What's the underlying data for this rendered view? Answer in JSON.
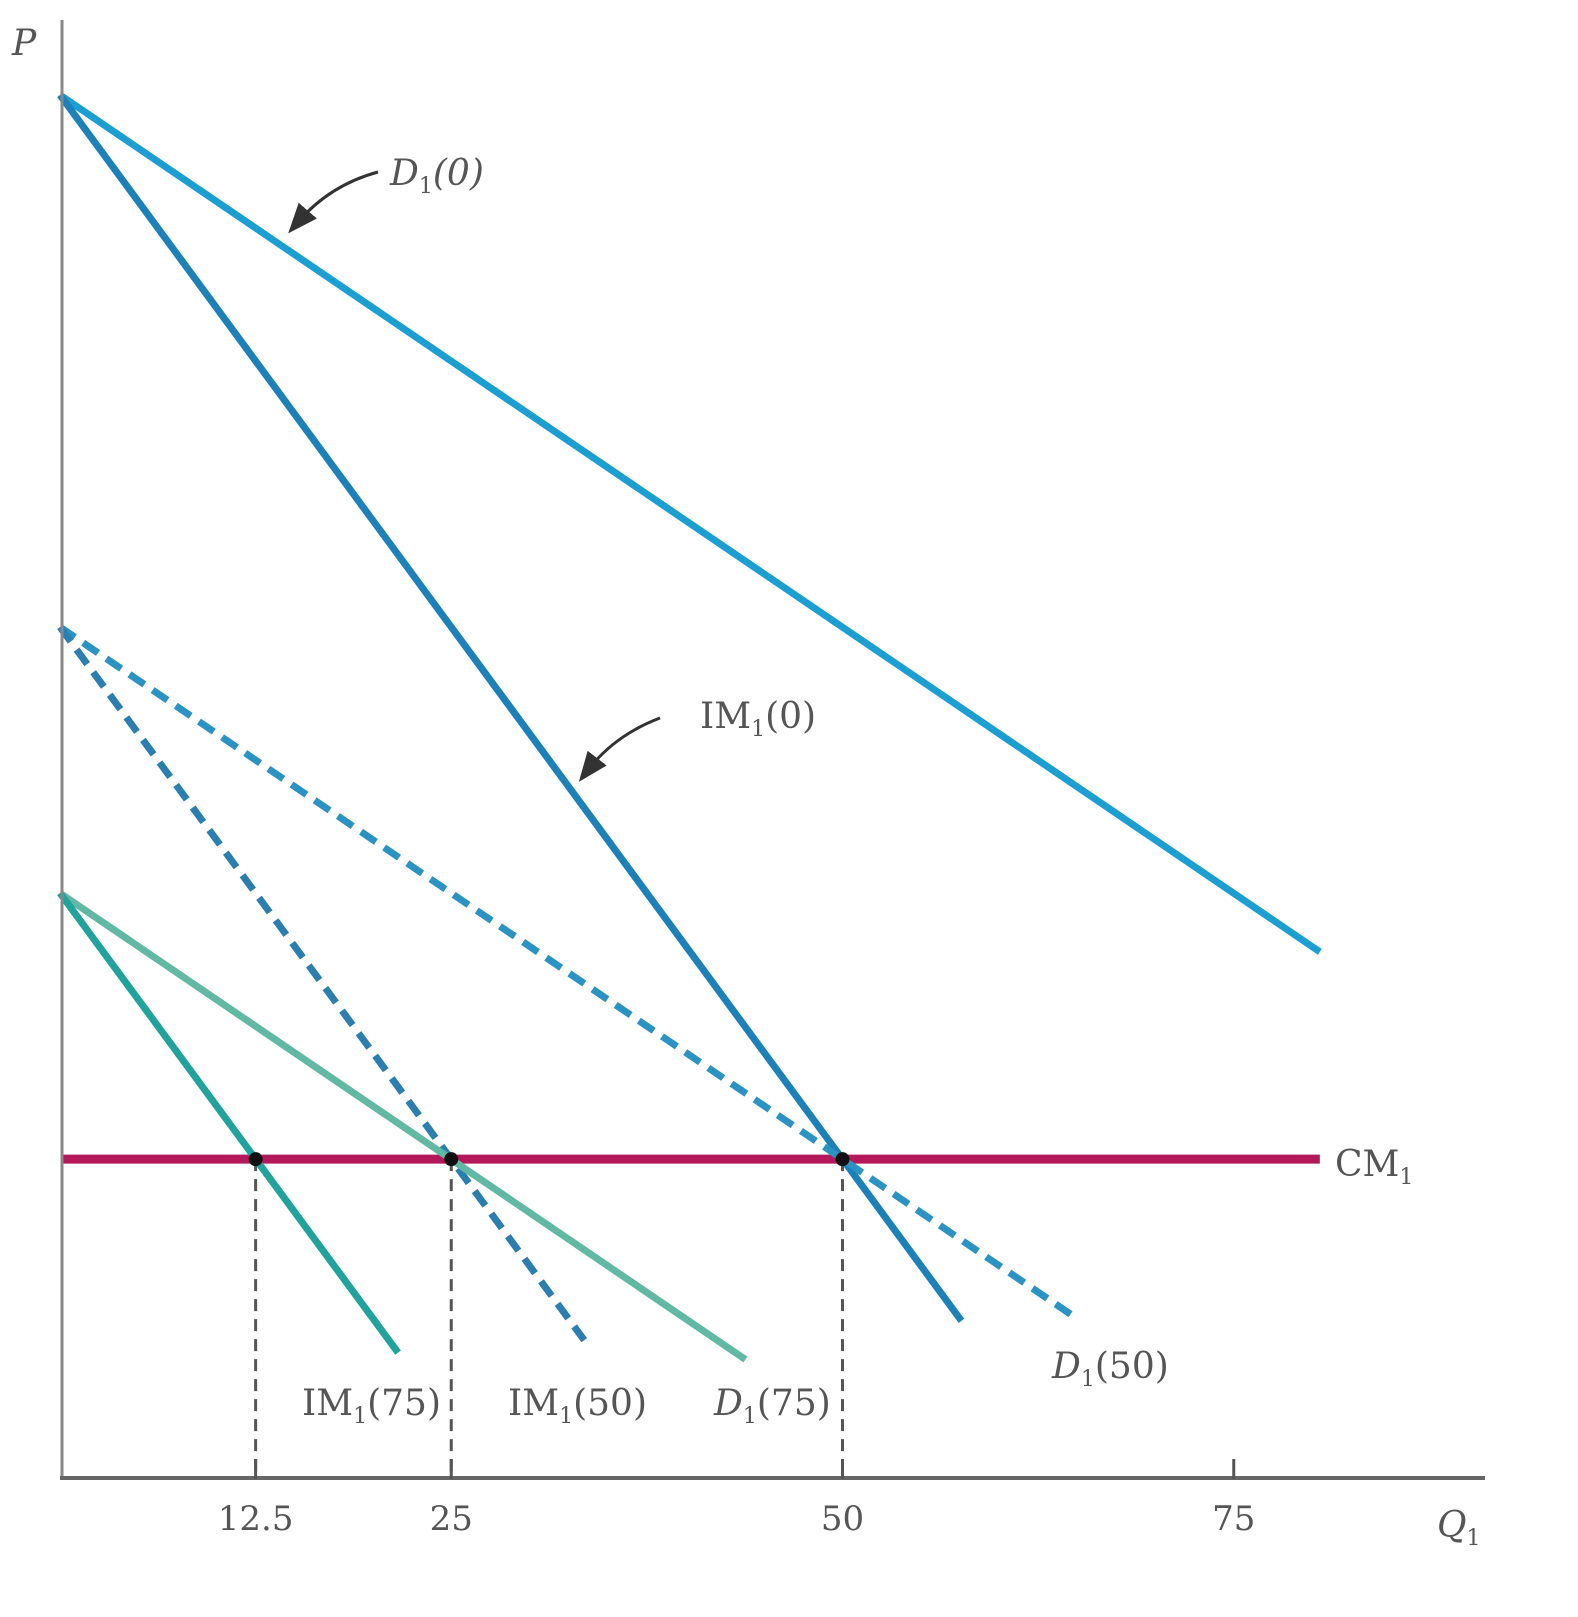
{
  "chart_data": {
    "type": "line",
    "title": "",
    "xlabel": "Q1",
    "ylabel": "P",
    "xlim": [
      0,
      91
    ],
    "ylim": [
      0,
      100
    ],
    "grid": false,
    "x_ticks": [
      {
        "value": 12.5,
        "label": "12.5",
        "guide": true
      },
      {
        "value": 25,
        "label": "25",
        "guide": true
      },
      {
        "value": 50,
        "label": "50",
        "guide": true
      },
      {
        "value": 75,
        "label": "75",
        "guide": false
      }
    ],
    "series": [
      {
        "name": "D1(0)",
        "style": "solid",
        "color": "#1b9fd2",
        "points": [
          [
            0,
            100
          ],
          [
            80.5,
            38
          ]
        ]
      },
      {
        "name": "IM1(0)",
        "style": "solid",
        "color": "#1c80b9",
        "points": [
          [
            0,
            100
          ],
          [
            57.6,
            11.3
          ]
        ]
      },
      {
        "name": "D1(50)",
        "style": "dashed",
        "color": "#2b93c4",
        "points": [
          [
            0,
            61.5
          ],
          [
            65,
            11.45
          ]
        ]
      },
      {
        "name": "IM1(50)",
        "style": "dashed",
        "color": "#2a7fb0",
        "points": [
          [
            0,
            61.5
          ],
          [
            33.5,
            9.9
          ]
        ]
      },
      {
        "name": "D1(75)",
        "style": "solid",
        "color": "#62b9a3",
        "points": [
          [
            0,
            42.25
          ],
          [
            43.8,
            8.5
          ]
        ]
      },
      {
        "name": "IM1(75)",
        "style": "solid",
        "color": "#1fa39c",
        "points": [
          [
            0,
            42.25
          ],
          [
            21.6,
            9
          ]
        ]
      },
      {
        "name": "CM1",
        "style": "solid",
        "color": "#b3185a",
        "points": [
          [
            0,
            23
          ],
          [
            80.5,
            23
          ]
        ]
      }
    ],
    "equilibria": [
      {
        "x": 12.5,
        "y": 23
      },
      {
        "x": 25,
        "y": 23
      },
      {
        "x": 50,
        "y": 23
      }
    ],
    "labels": {
      "y_axis": "P",
      "x_axis_main": "Q",
      "x_axis_sub": "1",
      "d0": {
        "main": "D",
        "sub": "1",
        "rest": "(0)"
      },
      "im0": {
        "main": "IM",
        "sub": "1",
        "rest": "(0)"
      },
      "d50": {
        "main": "D",
        "sub": "1",
        "rest": "(50)"
      },
      "im50": {
        "main": "IM",
        "sub": "1",
        "rest": "(50)"
      },
      "d75": {
        "main": "D",
        "sub": "1",
        "rest": "(75)"
      },
      "im75": {
        "main": "IM",
        "sub": "1",
        "rest": "(75)"
      },
      "cm": {
        "main": "CM",
        "sub": "1"
      }
    }
  }
}
